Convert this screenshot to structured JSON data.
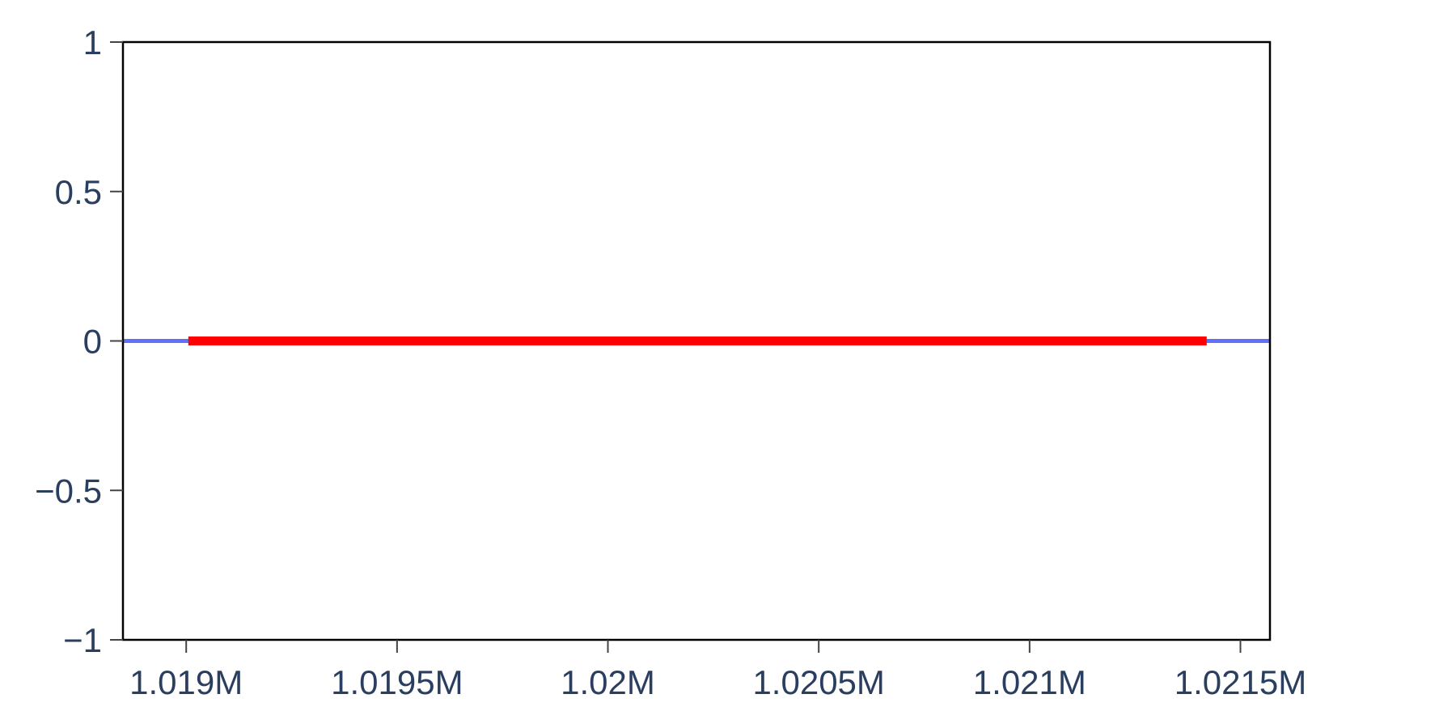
{
  "chart_data": {
    "type": "line",
    "title": "",
    "xlabel": "",
    "ylabel": "",
    "xlim": [
      1018850,
      1021570
    ],
    "ylim": [
      -1,
      1
    ],
    "x_ticks": [
      {
        "value": 1019000,
        "label": "1.019M"
      },
      {
        "value": 1019500,
        "label": "1.0195M"
      },
      {
        "value": 1020000,
        "label": "1.02M"
      },
      {
        "value": 1020500,
        "label": "1.0205M"
      },
      {
        "value": 1021000,
        "label": "1.021M"
      },
      {
        "value": 1021500,
        "label": "1.0215M"
      }
    ],
    "y_ticks": [
      {
        "value": 1,
        "label": "1"
      },
      {
        "value": 0.5,
        "label": "0.5"
      },
      {
        "value": 0,
        "label": "0"
      },
      {
        "value": -0.5,
        "label": "−0.5"
      },
      {
        "value": -1,
        "label": "−1"
      }
    ],
    "grid": false,
    "legend": "none",
    "series": [
      {
        "color": "#636efa",
        "x": [
          1018850,
          1021570
        ],
        "y": [
          0,
          0
        ]
      },
      {
        "color": "#ff0000",
        "x": [
          1019005,
          1021420
        ],
        "y": [
          0,
          0
        ]
      }
    ],
    "colors": {
      "tick_text": "#2a3f5f",
      "axis_line": "#000000",
      "tick_mark": "#444444",
      "background": "#ffffff"
    }
  }
}
